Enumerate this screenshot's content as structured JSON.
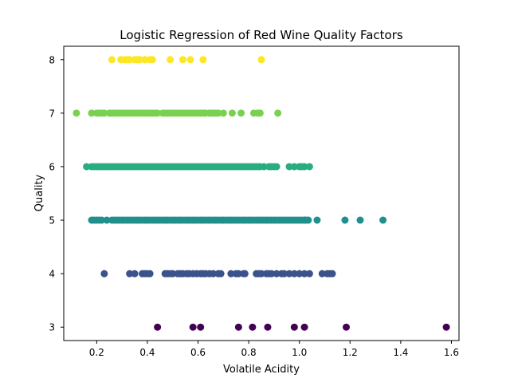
{
  "chart_data": {
    "type": "scatter",
    "title": "Logistic Regression of Red Wine Quality Factors",
    "xlabel": "Volatile Acidity",
    "ylabel": "Quality",
    "xlim": [
      0.07,
      1.63
    ],
    "ylim": [
      2.75,
      8.25
    ],
    "xticks": [
      0.2,
      0.4,
      0.6,
      0.8,
      1.0,
      1.2,
      1.4,
      1.6
    ],
    "xtick_labels": [
      "0.2",
      "0.4",
      "0.6",
      "0.8",
      "1.0",
      "1.2",
      "1.4",
      "1.6"
    ],
    "yticks": [
      3,
      4,
      5,
      6,
      7,
      8
    ],
    "ytick_labels": [
      "3",
      "4",
      "5",
      "6",
      "7",
      "8"
    ],
    "grid": false,
    "series": [
      {
        "quality": 3,
        "color": "#440154",
        "x": [
          0.44,
          0.58,
          0.61,
          0.76,
          0.815,
          0.875,
          0.98,
          1.02,
          1.185,
          1.58
        ]
      },
      {
        "quality": 4,
        "color": "#3b528b",
        "x": [
          0.23,
          0.33,
          0.35,
          0.38,
          0.39,
          0.4,
          0.41,
          0.47,
          0.48,
          0.49,
          0.5,
          0.52,
          0.53,
          0.54,
          0.555,
          0.565,
          0.58,
          0.595,
          0.61,
          0.62,
          0.63,
          0.645,
          0.66,
          0.68,
          0.69,
          0.73,
          0.75,
          0.76,
          0.78,
          0.785,
          0.83,
          0.84,
          0.85,
          0.87,
          0.88,
          0.89,
          0.91,
          0.93,
          0.94,
          0.96,
          0.98,
          1.0,
          1.02,
          1.04,
          1.09,
          1.11,
          1.12,
          1.13
        ]
      },
      {
        "quality": 5,
        "color": "#21908d",
        "x": [
          0.18,
          0.19,
          0.2,
          0.21,
          0.22,
          0.24,
          0.26,
          0.27,
          0.28,
          0.29,
          0.3,
          0.31,
          0.32,
          0.33,
          0.34,
          0.35,
          0.36,
          0.37,
          0.38,
          0.39,
          0.4,
          0.41,
          0.42,
          0.43,
          0.44,
          0.45,
          0.46,
          0.47,
          0.48,
          0.49,
          0.5,
          0.51,
          0.52,
          0.53,
          0.54,
          0.55,
          0.56,
          0.57,
          0.58,
          0.59,
          0.6,
          0.61,
          0.62,
          0.63,
          0.64,
          0.65,
          0.66,
          0.67,
          0.68,
          0.69,
          0.7,
          0.71,
          0.72,
          0.73,
          0.74,
          0.75,
          0.76,
          0.77,
          0.78,
          0.79,
          0.8,
          0.81,
          0.82,
          0.83,
          0.84,
          0.85,
          0.86,
          0.87,
          0.88,
          0.89,
          0.9,
          0.91,
          0.92,
          0.93,
          0.94,
          0.95,
          0.96,
          0.97,
          0.98,
          0.99,
          1.0,
          1.01,
          1.02,
          1.025,
          1.035,
          1.07,
          1.18,
          1.24,
          1.33
        ]
      },
      {
        "quality": 6,
        "color": "#27ad81",
        "x": [
          0.16,
          0.18,
          0.19,
          0.2,
          0.21,
          0.22,
          0.23,
          0.24,
          0.25,
          0.26,
          0.27,
          0.28,
          0.29,
          0.3,
          0.31,
          0.32,
          0.33,
          0.34,
          0.35,
          0.36,
          0.37,
          0.38,
          0.39,
          0.4,
          0.41,
          0.42,
          0.43,
          0.44,
          0.45,
          0.46,
          0.47,
          0.48,
          0.49,
          0.5,
          0.51,
          0.52,
          0.53,
          0.54,
          0.55,
          0.56,
          0.57,
          0.58,
          0.59,
          0.6,
          0.61,
          0.62,
          0.63,
          0.64,
          0.65,
          0.66,
          0.67,
          0.68,
          0.69,
          0.7,
          0.71,
          0.72,
          0.73,
          0.74,
          0.75,
          0.76,
          0.77,
          0.78,
          0.79,
          0.8,
          0.81,
          0.82,
          0.83,
          0.84,
          0.845,
          0.86,
          0.88,
          0.89,
          0.9,
          0.91,
          0.96,
          0.98,
          1.0,
          1.01,
          1.02,
          1.04
        ]
      },
      {
        "quality": 7,
        "color": "#7ad151",
        "x": [
          0.12,
          0.18,
          0.2,
          0.21,
          0.22,
          0.23,
          0.25,
          0.26,
          0.27,
          0.28,
          0.29,
          0.3,
          0.31,
          0.32,
          0.33,
          0.34,
          0.35,
          0.36,
          0.37,
          0.38,
          0.39,
          0.4,
          0.41,
          0.42,
          0.43,
          0.44,
          0.46,
          0.47,
          0.48,
          0.49,
          0.5,
          0.51,
          0.52,
          0.53,
          0.54,
          0.55,
          0.56,
          0.57,
          0.58,
          0.59,
          0.6,
          0.61,
          0.62,
          0.63,
          0.645,
          0.65,
          0.66,
          0.67,
          0.68,
          0.7,
          0.735,
          0.77,
          0.82,
          0.835,
          0.845,
          0.915
        ]
      },
      {
        "quality": 8,
        "color": "#fde725",
        "x": [
          0.26,
          0.295,
          0.31,
          0.32,
          0.33,
          0.35,
          0.36,
          0.37,
          0.39,
          0.41,
          0.42,
          0.49,
          0.54,
          0.57,
          0.62,
          0.85
        ]
      }
    ]
  }
}
